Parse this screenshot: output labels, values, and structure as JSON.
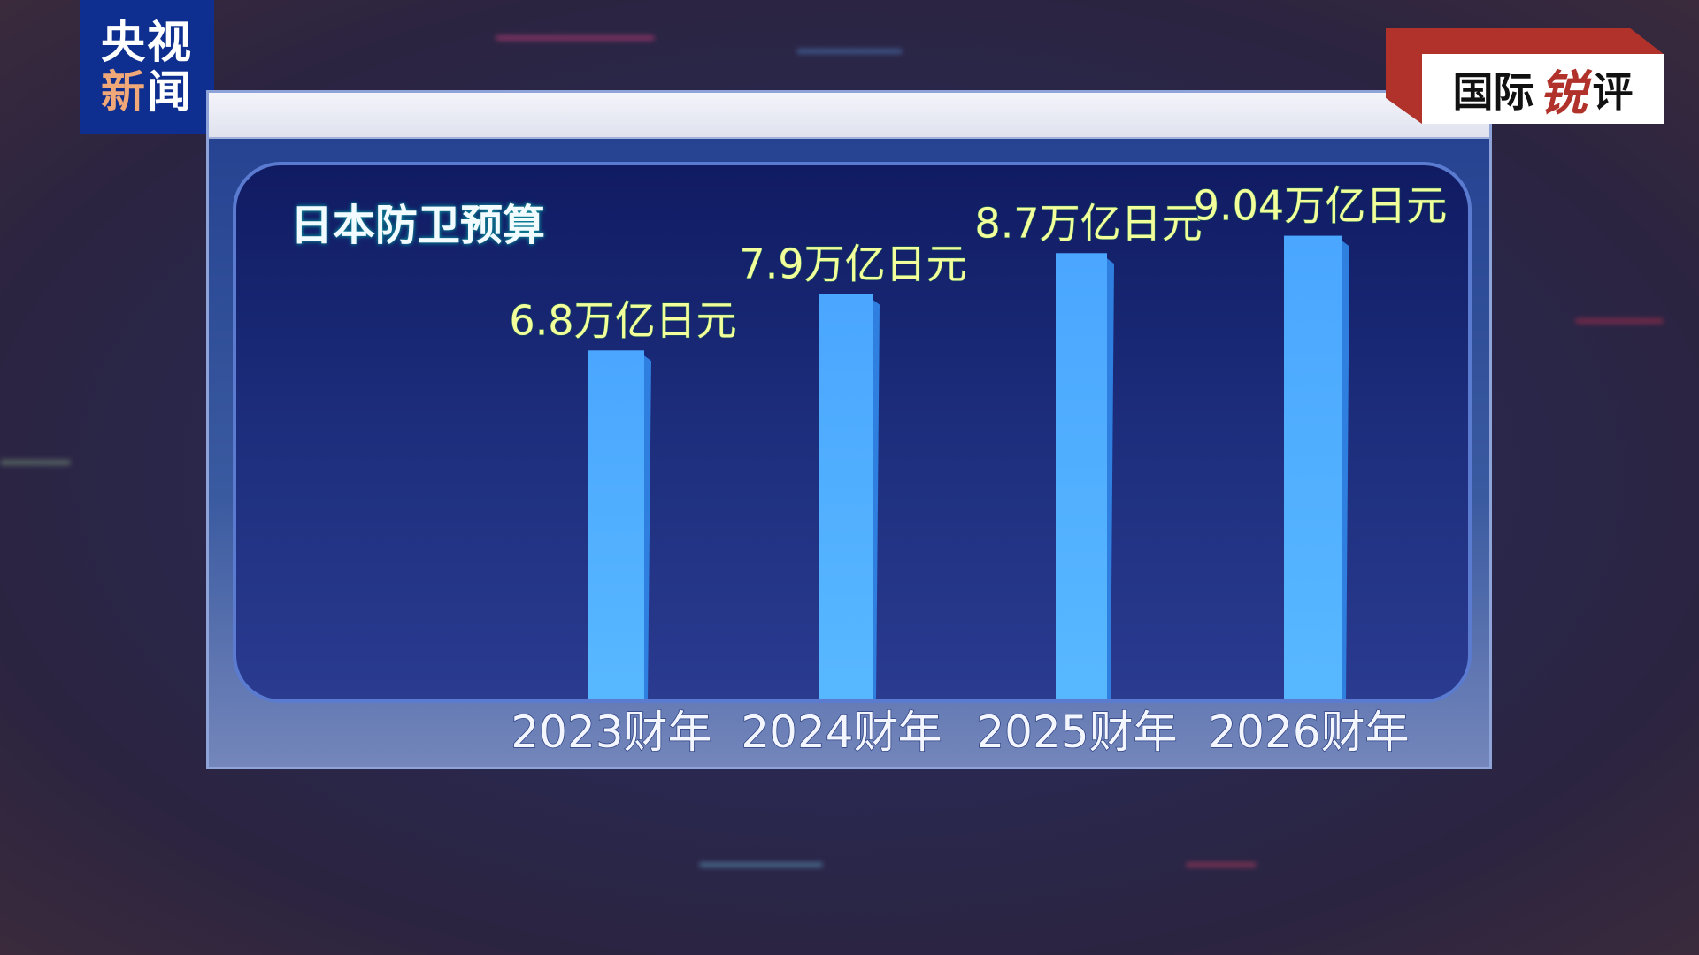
{
  "logo": {
    "line1": "央视",
    "line2a": "新",
    "line2b": "闻"
  },
  "badge": {
    "part1": "国际",
    "accent": "锐",
    "part2": "评"
  },
  "colors": {
    "bar": "#4aa6ff",
    "value_label": "#f2ff9a",
    "logo_bg": "#0e2f8f",
    "badge_red": "#b0322b"
  },
  "chart_data": {
    "type": "bar",
    "title": "日本防卫预算",
    "categories": [
      "2023财年",
      "2024财年",
      "2025财年",
      "2026财年"
    ],
    "values": [
      6.8,
      7.9,
      8.7,
      9.04
    ],
    "value_labels": [
      "6.8万亿日元",
      "7.9万亿日元",
      "8.7万亿日元",
      "9.04万亿日元"
    ],
    "unit": "万亿日元",
    "ylim": [
      0,
      10
    ],
    "grid": false,
    "legend": "none"
  }
}
